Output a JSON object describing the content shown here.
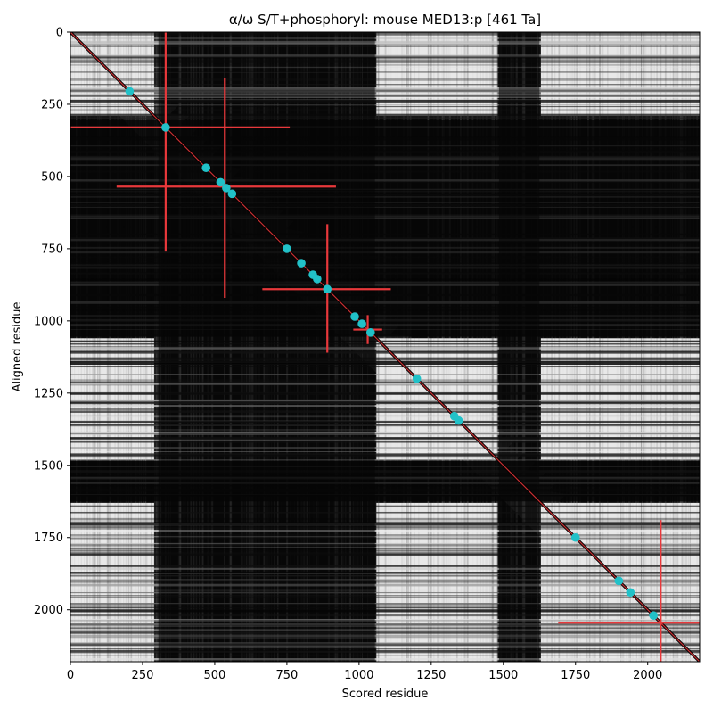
{
  "chart_data": {
    "type": "heatmap",
    "title": "α/ω S/T+phosphoryl: mouse MED13:p [461 Ta]",
    "xlabel": "Scored residue",
    "ylabel": "Aligned residue",
    "xlim": [
      0,
      2180
    ],
    "ylim": [
      2180,
      0
    ],
    "xticks": [
      0,
      250,
      500,
      750,
      1000,
      1250,
      1500,
      1750,
      2000
    ],
    "yticks": [
      0,
      250,
      500,
      750,
      1000,
      1250,
      1500,
      1750,
      2000
    ],
    "grid": false,
    "colormap": "gray",
    "colors": {
      "background": "#0b0b0b",
      "bright_block": "#e8e8e8",
      "mid_block": "#5a5a5a",
      "dark_band": "#050505",
      "diagonal_line": "#000000",
      "red_line": "#e8383b",
      "cyan_marker": "#21c1c8"
    },
    "bright_bands": [
      [
        0,
        290
      ],
      [
        1060,
        1480
      ],
      [
        1630,
        2180
      ]
    ],
    "dark_gap_bands": [
      [
        305,
        1055
      ],
      [
        1485,
        1625
      ]
    ],
    "diagonal": {
      "from": [
        0,
        0
      ],
      "to": [
        2180,
        2180
      ]
    },
    "red_crosses": [
      {
        "x": 330,
        "y": 330,
        "h_extent": [
          0,
          760
        ],
        "v_extent": [
          0,
          760
        ]
      },
      {
        "x": 535,
        "y": 535,
        "h_extent": [
          160,
          920
        ],
        "v_extent": [
          160,
          920
        ]
      },
      {
        "x": 890,
        "y": 890,
        "h_extent": [
          665,
          1110
        ],
        "v_extent": [
          665,
          1110
        ]
      },
      {
        "x": 1030,
        "y": 1030,
        "h_extent": [
          980,
          1080
        ],
        "v_extent": [
          980,
          1080
        ]
      },
      {
        "x": 2045,
        "y": 2045,
        "h_extent": [
          1690,
          2180
        ],
        "v_extent": [
          1690,
          2180
        ]
      }
    ],
    "cyan_points": [
      {
        "x": 205,
        "y": 205
      },
      {
        "x": 330,
        "y": 330
      },
      {
        "x": 470,
        "y": 470
      },
      {
        "x": 520,
        "y": 520
      },
      {
        "x": 540,
        "y": 540
      },
      {
        "x": 560,
        "y": 560
      },
      {
        "x": 750,
        "y": 750
      },
      {
        "x": 800,
        "y": 800
      },
      {
        "x": 840,
        "y": 840
      },
      {
        "x": 855,
        "y": 855
      },
      {
        "x": 890,
        "y": 890
      },
      {
        "x": 985,
        "y": 985
      },
      {
        "x": 1010,
        "y": 1010
      },
      {
        "x": 1040,
        "y": 1040
      },
      {
        "x": 1200,
        "y": 1200
      },
      {
        "x": 1330,
        "y": 1330
      },
      {
        "x": 1345,
        "y": 1345
      },
      {
        "x": 1750,
        "y": 1750
      },
      {
        "x": 1900,
        "y": 1900
      },
      {
        "x": 1940,
        "y": 1940
      },
      {
        "x": 2020,
        "y": 2020
      }
    ]
  }
}
